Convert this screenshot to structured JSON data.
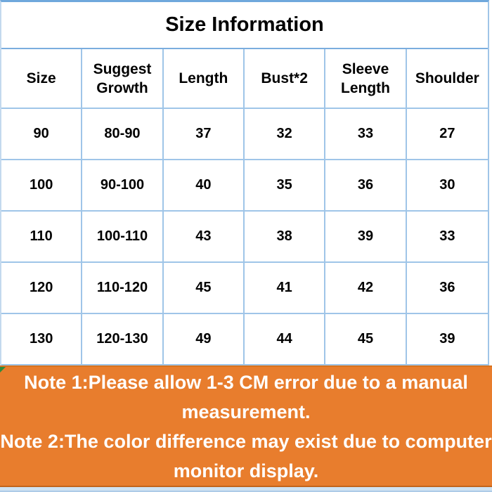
{
  "chart_data": {
    "type": "table",
    "title": "Size Information",
    "columns": [
      "Size",
      "Suggest Growth",
      "Length",
      "Bust*2",
      "Sleeve Length",
      "Shoulder"
    ],
    "rows": [
      [
        "90",
        "80-90",
        "37",
        "32",
        "33",
        "27"
      ],
      [
        "100",
        "90-100",
        "40",
        "35",
        "36",
        "30"
      ],
      [
        "110",
        "100-110",
        "43",
        "38",
        "39",
        "33"
      ],
      [
        "120",
        "110-120",
        "45",
        "41",
        "42",
        "36"
      ],
      [
        "130",
        "120-130",
        "49",
        "44",
        "45",
        "39"
      ]
    ],
    "notes": [
      "Note 1:Please allow 1-3 CM error due to a manual measurement.",
      "Note 2:The color difference may exist due to computer monitor display."
    ]
  },
  "note_lines": [
    "Note 1:Please allow 1-3 CM error due to a manual",
    "measurement.",
    "Note 2:The color difference may exist due to computer",
    "monitor display."
  ],
  "colors": {
    "background": "#ffffff",
    "text": "#000000",
    "grid_border_light": "#9fc5e8",
    "grid_border_strong": "#6fa8dc",
    "note_background": "#e87d2d",
    "note_text": "#ffffff",
    "note_bottom_edge": "#c2641c",
    "bottom_strip": "#cfe2f2",
    "corner_marker_green": "#2e8b3c"
  }
}
